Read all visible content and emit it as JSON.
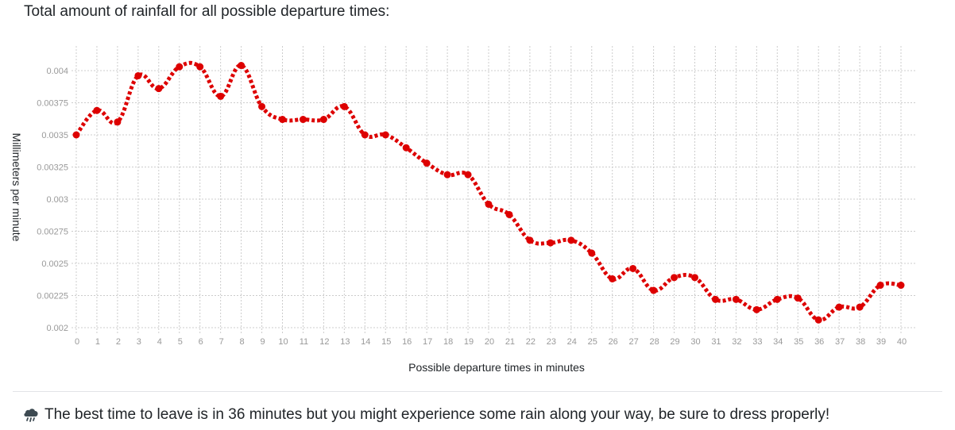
{
  "page": {
    "heading": "Total amount of rainfall for all possible departure times:",
    "message": "The best time to leave is in 36 minutes but you might experience some rain along your way, be sure to dress properly!",
    "message_icon": "rain-cloud-icon"
  },
  "chart_data": {
    "type": "line",
    "xlabel": "Possible departure times in minutes",
    "ylabel": "Millimeters per minute",
    "ylim": [
      0.002,
      0.0041
    ],
    "y_ticks": [
      "0.002",
      "0.00225",
      "0.0025",
      "0.00275",
      "0.003",
      "0.00325",
      "0.0035",
      "0.00375",
      "0.004"
    ],
    "y_tick_values": [
      0.002,
      0.00225,
      0.0025,
      0.00275,
      0.003,
      0.00325,
      0.0035,
      0.00375,
      0.004
    ],
    "x": [
      0,
      1,
      2,
      3,
      4,
      5,
      6,
      7,
      8,
      9,
      10,
      11,
      12,
      13,
      14,
      15,
      16,
      17,
      18,
      19,
      20,
      21,
      22,
      23,
      24,
      25,
      26,
      27,
      28,
      29,
      30,
      31,
      32,
      33,
      34,
      35,
      36,
      37,
      38,
      39,
      40
    ],
    "x_ticks": [
      "0",
      "1",
      "2",
      "3",
      "4",
      "5",
      "6",
      "7",
      "8",
      "9",
      "10",
      "11",
      "12",
      "13",
      "14",
      "15",
      "16",
      "17",
      "18",
      "19",
      "20",
      "21",
      "22",
      "23",
      "24",
      "25",
      "26",
      "27",
      "28",
      "29",
      "30",
      "31",
      "32",
      "33",
      "34",
      "35",
      "36",
      "37",
      "38",
      "39",
      "40"
    ],
    "series": [
      {
        "color": "#dd0000",
        "values": [
          0.0035,
          0.00369,
          0.0036,
          0.00396,
          0.00386,
          0.00403,
          0.00403,
          0.0038,
          0.00404,
          0.00372,
          0.00362,
          0.00362,
          0.00362,
          0.00372,
          0.0035,
          0.0035,
          0.0034,
          0.00328,
          0.00319,
          0.00319,
          0.00296,
          0.00288,
          0.00268,
          0.00266,
          0.00268,
          0.00258,
          0.00238,
          0.00246,
          0.00229,
          0.00239,
          0.00239,
          0.00222,
          0.00222,
          0.00214,
          0.00222,
          0.00223,
          0.00206,
          0.00216,
          0.00216,
          0.00233,
          0.00233
        ]
      }
    ],
    "grid": true,
    "grid_style": "dotted",
    "grid_color": "#cccccc",
    "tick_color": "#999999"
  }
}
